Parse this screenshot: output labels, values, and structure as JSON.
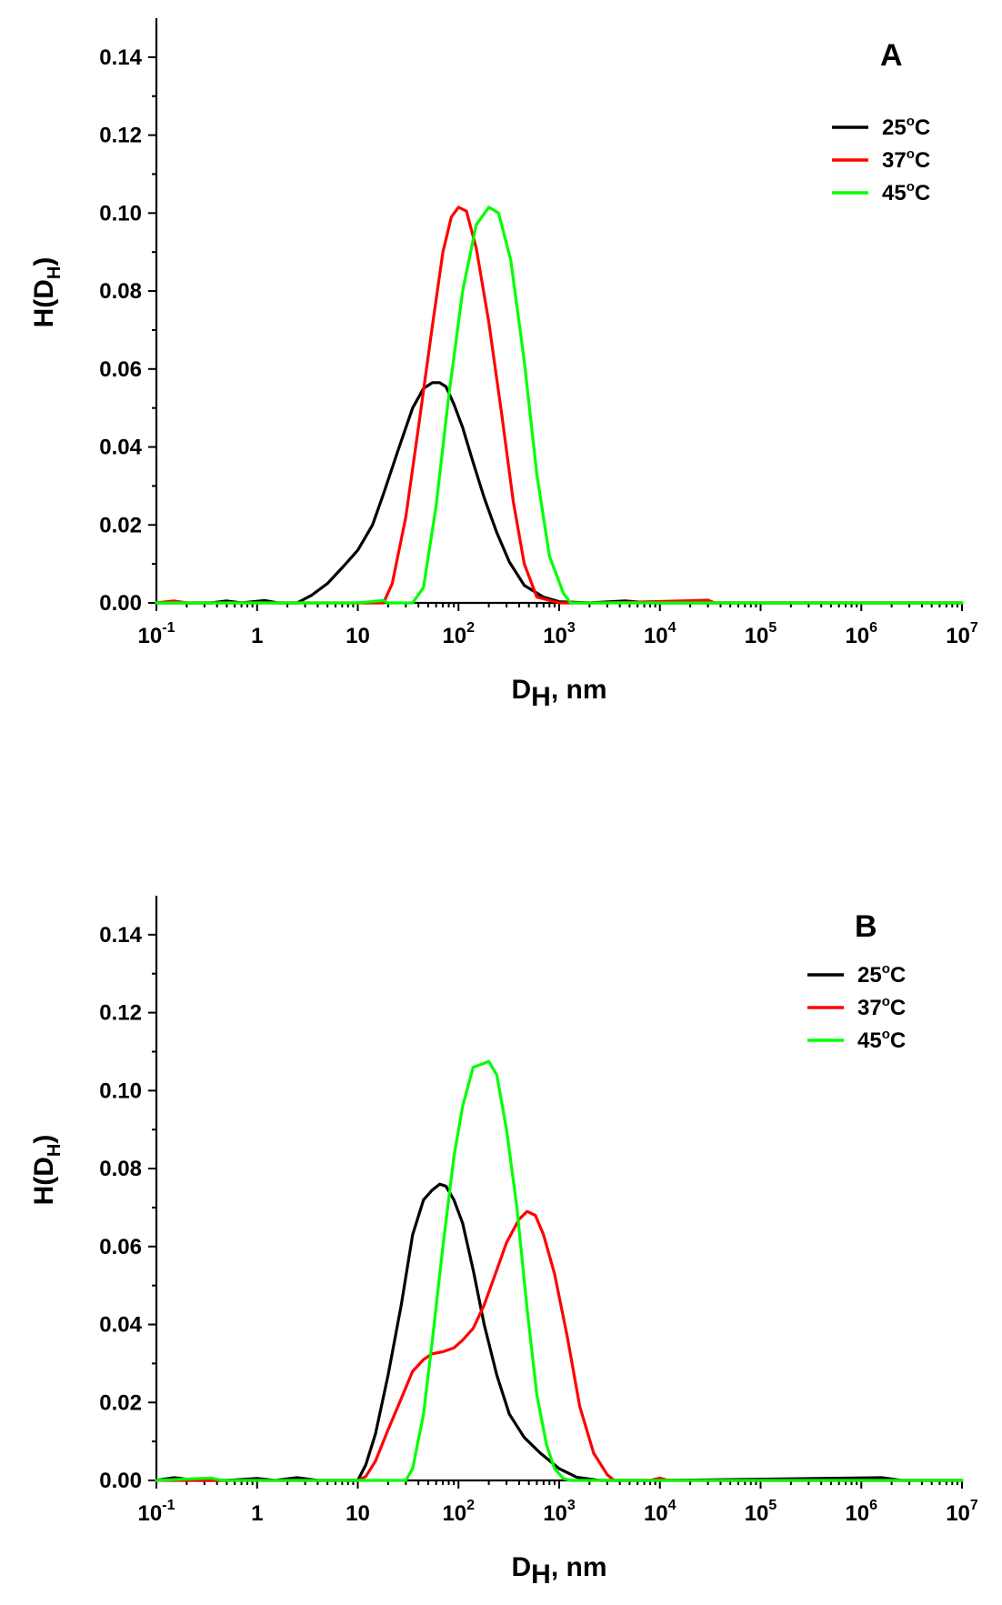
{
  "chart_data": [
    {
      "type": "line",
      "panel": "A",
      "xlabel": "D",
      "xlabel_sub": "H",
      "xlabel_unit": ", nm",
      "ylabel": "H(D",
      "ylabel_sub": "H",
      "ylabel_close": ")",
      "xscale": "log",
      "xlim": [
        0.1,
        10000000
      ],
      "ylim": [
        0,
        0.15
      ],
      "xticks": [
        {
          "base": "10",
          "exp": "-1"
        },
        {
          "base": "1",
          "exp": ""
        },
        {
          "base": "10",
          "exp": ""
        },
        {
          "base": "10",
          "exp": "2"
        },
        {
          "base": "10",
          "exp": "3"
        },
        {
          "base": "10",
          "exp": "4"
        },
        {
          "base": "10",
          "exp": "5"
        },
        {
          "base": "10",
          "exp": "6"
        },
        {
          "base": "10",
          "exp": "7"
        }
      ],
      "yticks": [
        "0.00",
        "0.02",
        "0.04",
        "0.06",
        "0.08",
        "0.10",
        "0.12",
        "0.14"
      ],
      "legend_position": "top-right",
      "series": [
        {
          "name": "25",
          "unit": "C",
          "color": "#000000",
          "x": [
            0.1,
            0.2,
            0.35,
            0.5,
            0.7,
            1.2,
            1.6,
            2.5,
            3.5,
            5,
            7,
            10,
            14,
            18,
            25,
            35,
            45,
            55,
            65,
            75,
            90,
            110,
            140,
            180,
            240,
            320,
            450,
            700,
            1000,
            2000,
            4500,
            8000,
            20000,
            100000,
            1000000,
            10000000
          ],
          "y": [
            0.0,
            0.0,
            0.0,
            0.0005,
            0.0,
            0.0006,
            0.0,
            0.0,
            0.002,
            0.005,
            0.009,
            0.0135,
            0.02,
            0.028,
            0.039,
            0.05,
            0.055,
            0.0565,
            0.0565,
            0.0555,
            0.051,
            0.045,
            0.036,
            0.027,
            0.018,
            0.0105,
            0.0045,
            0.0015,
            0.0003,
            0.0,
            0.0005,
            0.0,
            0.0,
            0.0,
            0.0,
            0.0
          ]
        },
        {
          "name": "37",
          "unit": "C",
          "color": "#ff0000",
          "x": [
            0.1,
            0.15,
            0.2,
            1,
            10,
            18,
            22,
            30,
            40,
            55,
            70,
            85,
            100,
            120,
            150,
            200,
            270,
            350,
            450,
            600,
            1000,
            3000,
            30000,
            35000,
            100000,
            10000000
          ],
          "y": [
            0.0,
            0.0005,
            0.0,
            0.0,
            0.0,
            0.0,
            0.005,
            0.022,
            0.045,
            0.071,
            0.09,
            0.099,
            0.1015,
            0.1005,
            0.091,
            0.072,
            0.048,
            0.026,
            0.01,
            0.0015,
            0.0,
            0.0,
            0.0007,
            0.0,
            0.0,
            0.0
          ]
        },
        {
          "name": "45",
          "unit": "C",
          "color": "#00ff00",
          "x": [
            0.1,
            1,
            10,
            18,
            20,
            35,
            45,
            60,
            80,
            110,
            150,
            200,
            250,
            330,
            450,
            600,
            800,
            1100,
            1300,
            10000,
            100000,
            1000000,
            2800,
            10000000
          ],
          "y": [
            0.0,
            0.0,
            0.0,
            0.0006,
            0.0,
            0.0,
            0.004,
            0.025,
            0.053,
            0.08,
            0.097,
            0.1015,
            0.1,
            0.088,
            0.062,
            0.033,
            0.012,
            0.0025,
            0.0,
            0.0,
            0.0,
            0.0,
            0.0,
            0.0
          ]
        }
      ]
    },
    {
      "type": "line",
      "panel": "B",
      "xlabel": "D",
      "xlabel_sub": "H",
      "xlabel_unit": ", nm",
      "ylabel": "H(D",
      "ylabel_sub": "H",
      "ylabel_close": ")",
      "xscale": "log",
      "xlim": [
        0.1,
        10000000
      ],
      "ylim": [
        0,
        0.15
      ],
      "xticks": [
        {
          "base": "10",
          "exp": "-1"
        },
        {
          "base": "1",
          "exp": ""
        },
        {
          "base": "10",
          "exp": ""
        },
        {
          "base": "10",
          "exp": "2"
        },
        {
          "base": "10",
          "exp": "3"
        },
        {
          "base": "10",
          "exp": "4"
        },
        {
          "base": "10",
          "exp": "5"
        },
        {
          "base": "10",
          "exp": "6"
        },
        {
          "base": "10",
          "exp": "7"
        }
      ],
      "yticks": [
        "0.00",
        "0.02",
        "0.04",
        "0.06",
        "0.08",
        "0.10",
        "0.12",
        "0.14"
      ],
      "legend_position": "top-right",
      "series": [
        {
          "name": "25",
          "unit": "C",
          "color": "#000000",
          "x": [
            0.1,
            0.15,
            0.25,
            0.5,
            1,
            1.5,
            2.5,
            4,
            10,
            12,
            15,
            20,
            27,
            35,
            45,
            55,
            65,
            75,
            90,
            110,
            140,
            180,
            240,
            320,
            450,
            650,
            1000,
            1500,
            2500,
            10000,
            1600000,
            2500000,
            10000000
          ],
          "y": [
            0.0,
            0.0007,
            0.0,
            0.0,
            0.0005,
            0.0,
            0.0007,
            0.0,
            0.0,
            0.004,
            0.012,
            0.027,
            0.045,
            0.063,
            0.072,
            0.0745,
            0.076,
            0.0755,
            0.072,
            0.066,
            0.054,
            0.04,
            0.027,
            0.017,
            0.011,
            0.007,
            0.003,
            0.0008,
            0.0,
            0.0,
            0.0007,
            0.0,
            0.0
          ]
        },
        {
          "name": "37",
          "unit": "C",
          "color": "#ff0000",
          "x": [
            0.1,
            1,
            10,
            12,
            15,
            20,
            27,
            35,
            45,
            55,
            70,
            90,
            110,
            140,
            180,
            240,
            300,
            400,
            480,
            580,
            700,
            900,
            1200,
            1600,
            2200,
            3000,
            3500,
            8000,
            10000,
            12000,
            90000,
            10000000
          ],
          "y": [
            0.0,
            0.0,
            0.0,
            0.001,
            0.005,
            0.013,
            0.021,
            0.028,
            0.031,
            0.0325,
            0.033,
            0.034,
            0.036,
            0.039,
            0.045,
            0.054,
            0.061,
            0.067,
            0.069,
            0.068,
            0.063,
            0.053,
            0.037,
            0.019,
            0.007,
            0.0015,
            0.0,
            0.0,
            0.0006,
            0.0,
            0.0,
            0.0
          ]
        },
        {
          "name": "45",
          "unit": "C",
          "color": "#00ff00",
          "x": [
            0.1,
            0.35,
            0.45,
            1,
            10,
            30,
            35,
            45,
            55,
            70,
            90,
            110,
            140,
            180,
            200,
            240,
            300,
            380,
            480,
            600,
            750,
            900,
            1100,
            1300,
            10000,
            100000,
            1000000,
            2800,
            10000000
          ],
          "y": [
            0.0,
            0.0006,
            0.0,
            0.0,
            0.0,
            0.0,
            0.003,
            0.017,
            0.036,
            0.06,
            0.083,
            0.096,
            0.106,
            0.107,
            0.1075,
            0.104,
            0.09,
            0.07,
            0.044,
            0.022,
            0.009,
            0.003,
            0.0005,
            0.0,
            0.0,
            0.0,
            0.0,
            0.0,
            0.0
          ]
        }
      ]
    }
  ]
}
